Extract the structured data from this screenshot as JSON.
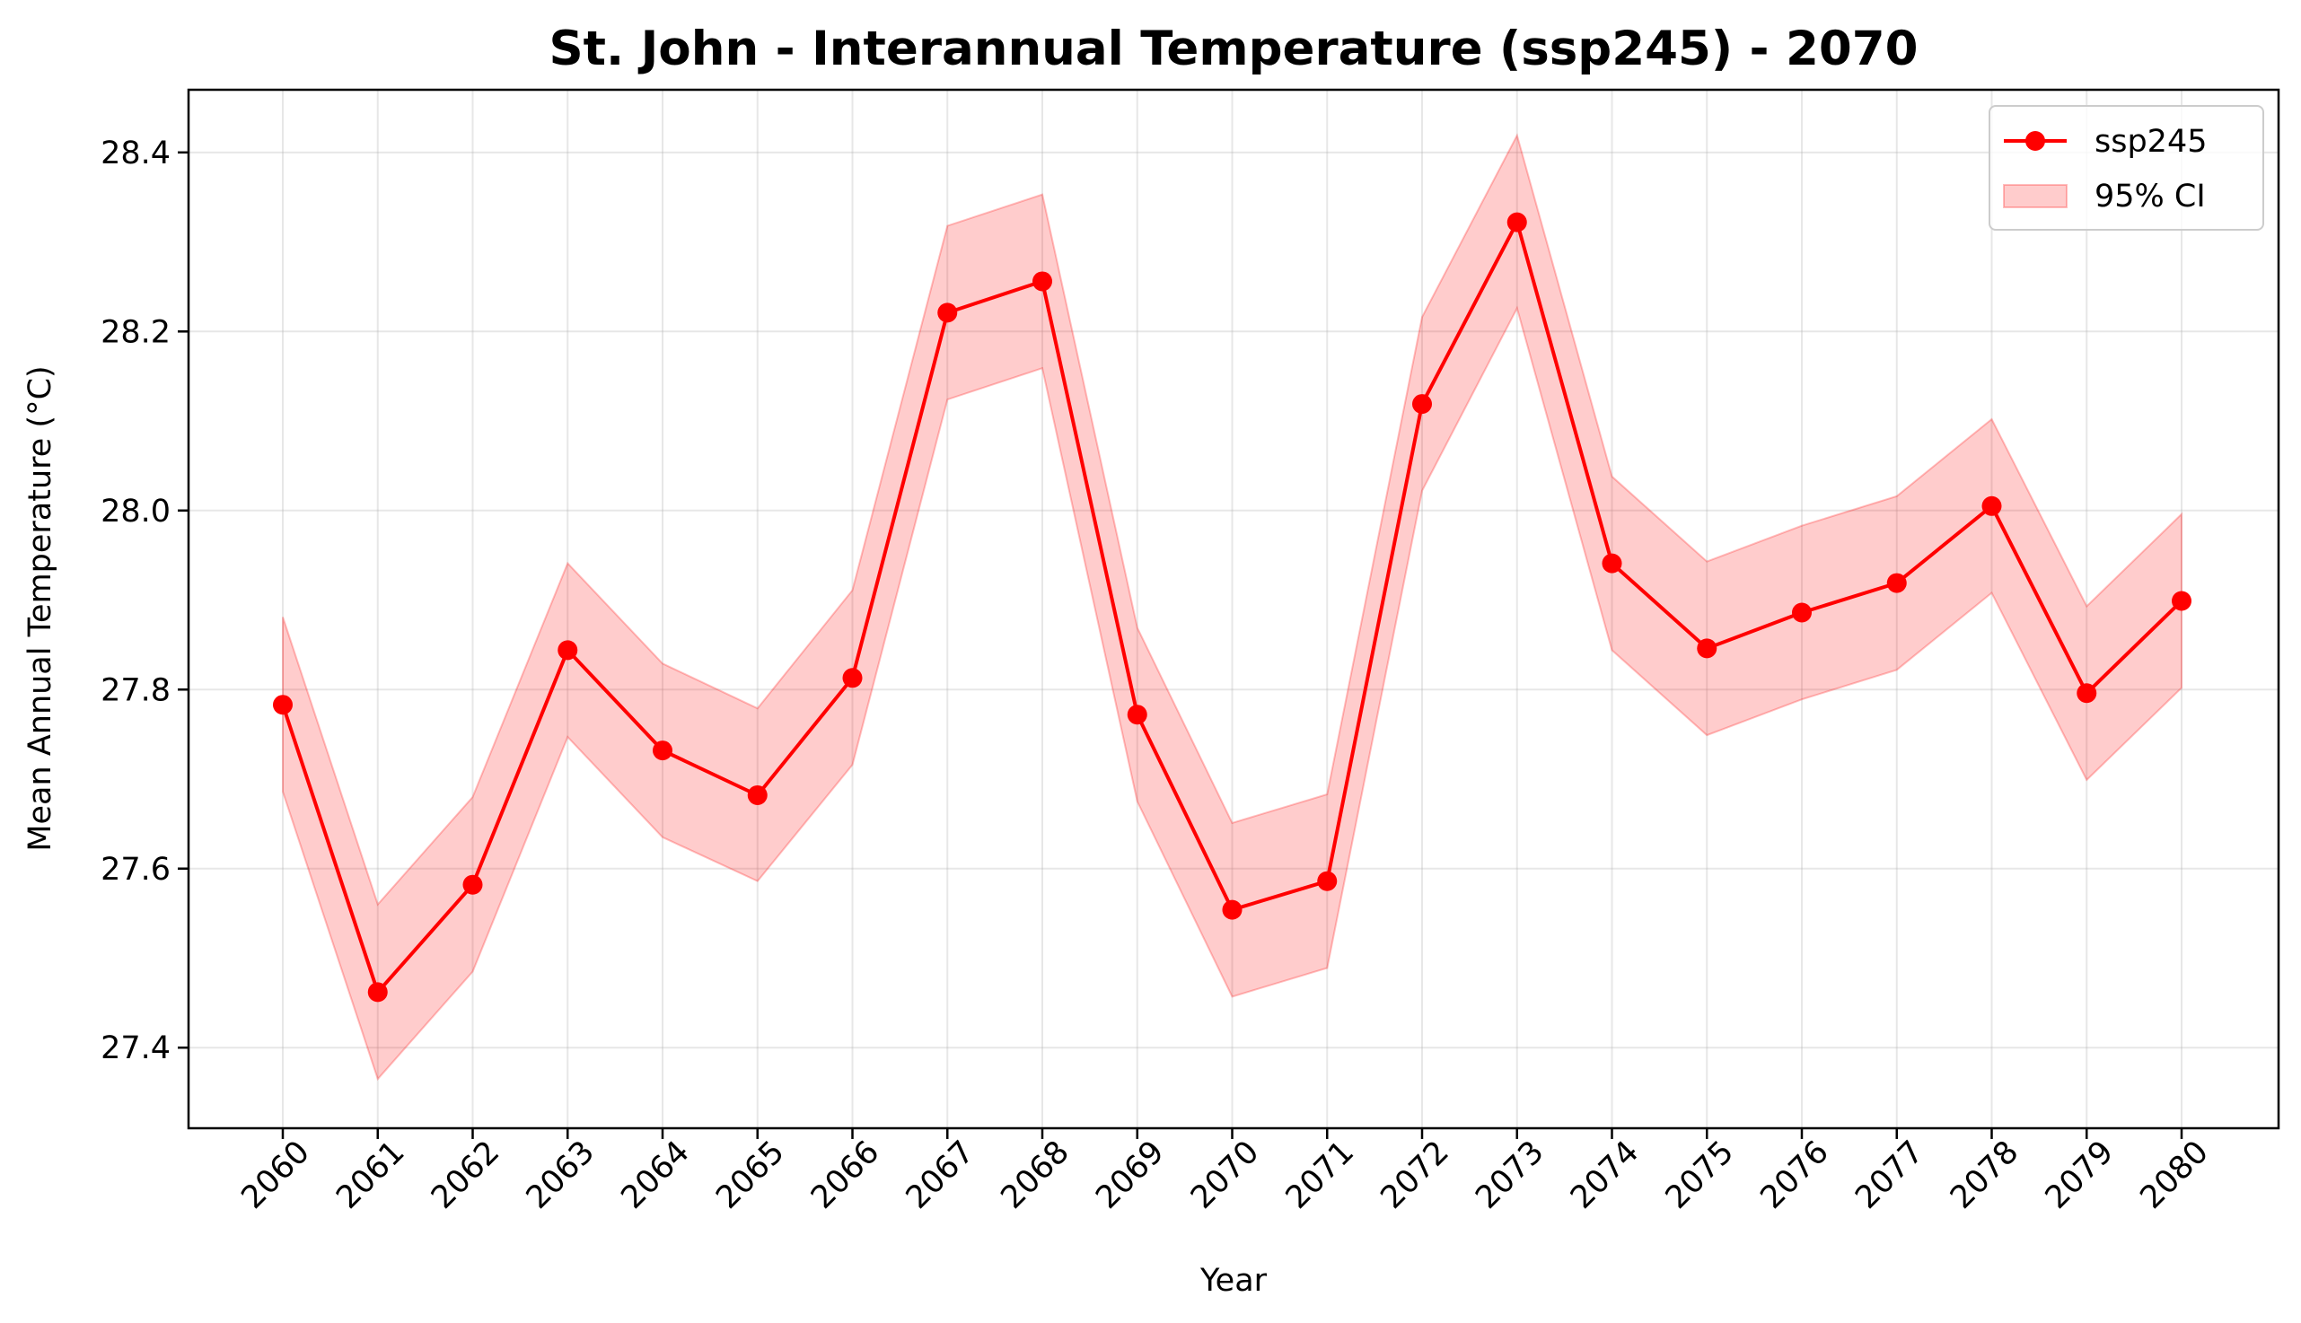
{
  "chart_data": {
    "type": "line",
    "title": "St. John - Interannual Temperature (ssp245) - 2070",
    "xlabel": "Year",
    "ylabel": "Mean Annual Temperature (°C)",
    "x": [
      "2060",
      "2061",
      "2062",
      "2063",
      "2064",
      "2065",
      "2066",
      "2067",
      "2068",
      "2069",
      "2070",
      "2071",
      "2072",
      "2073",
      "2074",
      "2075",
      "2076",
      "2077",
      "2078",
      "2079",
      "2080"
    ],
    "ylim": [
      27.31,
      28.47
    ],
    "yticks": [
      27.4,
      27.6,
      27.8,
      28.0,
      28.2,
      28.4
    ],
    "ytick_labels": [
      "27.4",
      "27.6",
      "27.8",
      "28.0",
      "28.2",
      "28.4"
    ],
    "grid": true,
    "legend_position": "top-right",
    "series": [
      {
        "name": "ssp245",
        "color": "#ff0000",
        "marker": "circle",
        "values": [
          27.783,
          27.462,
          27.582,
          27.844,
          27.732,
          27.682,
          27.813,
          28.221,
          28.256,
          27.772,
          27.554,
          27.586,
          28.119,
          28.322,
          27.941,
          27.846,
          27.886,
          27.919,
          28.005,
          27.796,
          27.899
        ]
      }
    ],
    "band": {
      "name": "95% CI",
      "color": "#ff0000",
      "opacity": 0.2,
      "lower": [
        27.686,
        27.365,
        27.485,
        27.747,
        27.635,
        27.586,
        27.716,
        28.124,
        28.159,
        27.675,
        27.457,
        27.489,
        28.022,
        28.226,
        27.844,
        27.749,
        27.789,
        27.822,
        27.908,
        27.699,
        27.802
      ],
      "upper": [
        27.881,
        27.56,
        27.68,
        27.941,
        27.829,
        27.779,
        27.911,
        28.318,
        28.353,
        27.869,
        27.651,
        27.683,
        28.216,
        28.419,
        28.038,
        27.943,
        27.983,
        28.016,
        28.102,
        27.893,
        27.996
      ]
    }
  }
}
